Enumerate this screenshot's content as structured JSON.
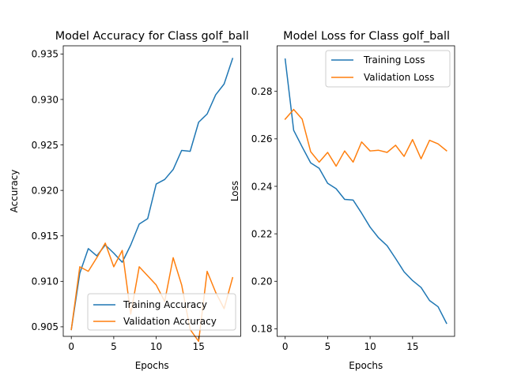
{
  "chart_data": [
    {
      "type": "line",
      "title": "Model Accuracy for Class golf_ball",
      "xlabel": "Epochs",
      "ylabel": "Accuracy",
      "xlim": [
        -0.95,
        19.95
      ],
      "ylim": [
        0.90395,
        0.9359
      ],
      "xticks": [
        0,
        5,
        10,
        15
      ],
      "yticks": [
        0.905,
        0.91,
        0.915,
        0.92,
        0.925,
        0.93,
        0.935
      ],
      "ytick_labels": [
        "0.905",
        "0.910",
        "0.915",
        "0.920",
        "0.925",
        "0.930",
        "0.935"
      ],
      "grid": false,
      "legend": "lower-right",
      "x": [
        0,
        1,
        2,
        3,
        4,
        5,
        6,
        7,
        8,
        9,
        10,
        11,
        12,
        13,
        14,
        15,
        16,
        17,
        18,
        19
      ],
      "series": [
        {
          "name": "Training Accuracy",
          "color": "#1f77b4",
          "values": [
            0.9047,
            0.9109,
            0.9136,
            0.9128,
            0.914,
            0.9131,
            0.9121,
            0.914,
            0.9163,
            0.9169,
            0.9207,
            0.9212,
            0.9223,
            0.9244,
            0.9243,
            0.9275,
            0.9284,
            0.9305,
            0.9317,
            0.9345
          ]
        },
        {
          "name": "Validation Accuracy",
          "color": "#ff7f0e",
          "values": [
            0.9047,
            0.9116,
            0.9111,
            0.9126,
            0.9142,
            0.9116,
            0.9134,
            0.9064,
            0.9116,
            0.9106,
            0.9096,
            0.9078,
            0.9126,
            0.9096,
            0.9047,
            0.9034,
            0.9111,
            0.9088,
            0.907,
            0.9104
          ]
        }
      ]
    },
    {
      "type": "line",
      "title": "Model Loss for Class golf_ball",
      "xlabel": "Epochs",
      "ylabel": "Loss",
      "xlim": [
        -0.95,
        19.95
      ],
      "ylim": [
        0.1768,
        0.2992
      ],
      "xticks": [
        0,
        5,
        10,
        15
      ],
      "yticks": [
        0.18,
        0.2,
        0.22,
        0.24,
        0.26,
        0.28
      ],
      "ytick_labels": [
        "0.18",
        "0.20",
        "0.22",
        "0.24",
        "0.26",
        "0.28"
      ],
      "grid": false,
      "legend": "upper-right",
      "x": [
        0,
        1,
        2,
        3,
        4,
        5,
        6,
        7,
        8,
        9,
        10,
        11,
        12,
        13,
        14,
        15,
        16,
        17,
        18,
        19
      ],
      "series": [
        {
          "name": "Training Loss",
          "color": "#1f77b4",
          "values": [
            0.2936,
            0.2636,
            0.2566,
            0.2499,
            0.2476,
            0.2413,
            0.239,
            0.2345,
            0.2342,
            0.2287,
            0.2228,
            0.2183,
            0.215,
            0.2096,
            0.204,
            0.2003,
            0.1974,
            0.1919,
            0.1893,
            0.1823
          ]
        },
        {
          "name": "Validation Loss",
          "color": "#ff7f0e",
          "values": [
            0.2683,
            0.2724,
            0.2683,
            0.2546,
            0.2502,
            0.2543,
            0.2485,
            0.2549,
            0.2502,
            0.2587,
            0.2549,
            0.2552,
            0.2543,
            0.2573,
            0.2526,
            0.2597,
            0.2516,
            0.2594,
            0.2579,
            0.255
          ]
        }
      ]
    }
  ]
}
